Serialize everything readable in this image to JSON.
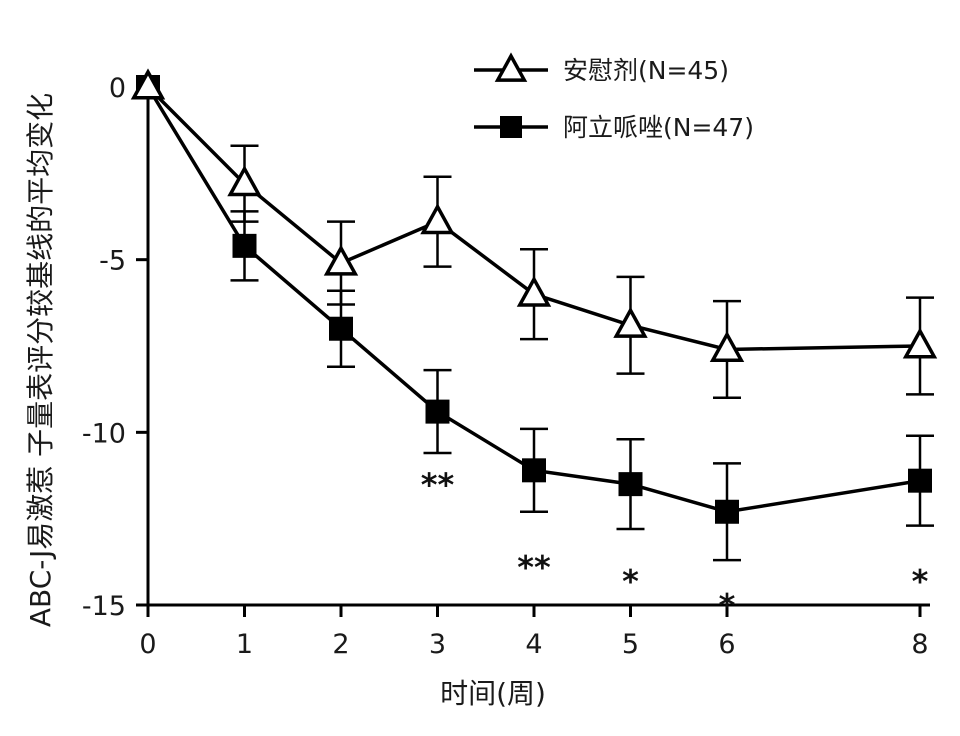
{
  "chart_data": {
    "type": "line",
    "title": "",
    "xlabel": "时间(周)",
    "ylabel": "ABC-J易激惹 子量表评分较基线的平均变化",
    "xlim": [
      0,
      8
    ],
    "ylim": [
      -15,
      0
    ],
    "x_ticks": [
      "0",
      "1",
      "2",
      "3",
      "4",
      "5",
      "6",
      "8"
    ],
    "y_ticks": [
      "0",
      "-5",
      "-10",
      "-15"
    ],
    "x": [
      0,
      1,
      2,
      3,
      4,
      5,
      6,
      8
    ],
    "series": [
      {
        "name": "安慰剂(N=45)",
        "marker": "open-triangle",
        "values": [
          0,
          -2.8,
          -5.1,
          -3.9,
          -6.0,
          -6.9,
          -7.6,
          -7.5
        ],
        "error": [
          0,
          1.1,
          1.2,
          1.3,
          1.3,
          1.4,
          1.4,
          1.4
        ]
      },
      {
        "name": "阿立哌唑(N=47)",
        "marker": "filled-square",
        "values": [
          0,
          -4.6,
          -7.0,
          -9.4,
          -11.1,
          -11.5,
          -12.3,
          -11.4
        ],
        "error": [
          0,
          1.0,
          1.1,
          1.2,
          1.2,
          1.3,
          1.4,
          1.3
        ]
      }
    ],
    "significance": [
      {
        "x": 3,
        "label": "**",
        "y": -11.2
      },
      {
        "x": 4,
        "label": "**",
        "y": -13.6
      },
      {
        "x": 5,
        "label": "*",
        "y": -14.0
      },
      {
        "x": 6,
        "label": "*",
        "y": -14.7
      },
      {
        "x": 8,
        "label": "*",
        "y": -14.0
      }
    ],
    "legend_position": "top-right",
    "grid": false,
    "colors": {
      "line": "#000000"
    }
  }
}
